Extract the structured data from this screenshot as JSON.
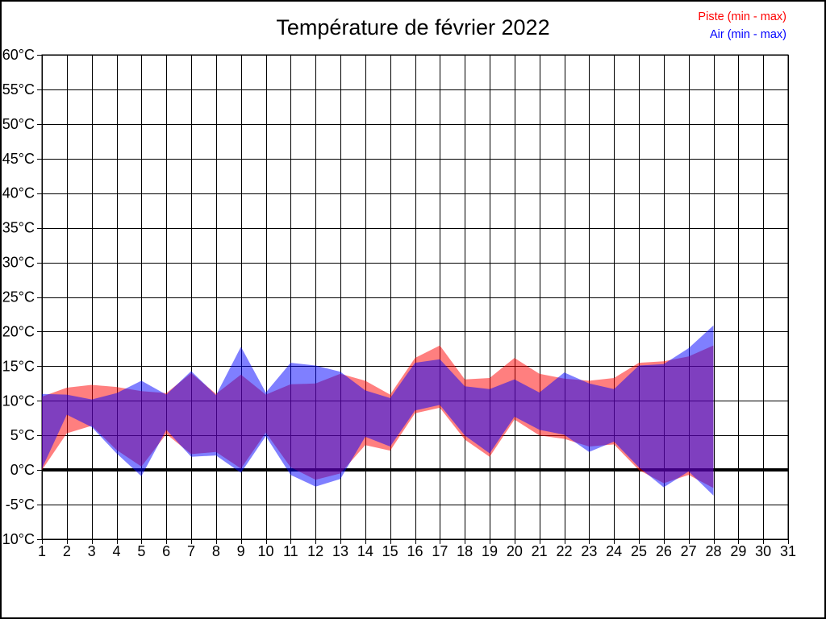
{
  "page": {
    "background": "#ffffff",
    "frame_color": "#000000"
  },
  "title": "Température de février 2022",
  "legend": [
    {
      "label": "Piste (min - max)",
      "color": "#ff0000"
    },
    {
      "label": "Air (min - max)",
      "color": "#0000ff"
    }
  ],
  "chart_data": {
    "type": "area",
    "title": "Température de février 2022",
    "xlabel": "",
    "ylabel": "",
    "grid": true,
    "legend_position": "top-right",
    "xlim": [
      1,
      31
    ],
    "ylim": [
      -10,
      60
    ],
    "y_tick_step": 5,
    "zero_line_value": 0,
    "x_tick_labels": [
      "1",
      "2",
      "3",
      "4",
      "5",
      "6",
      "7",
      "8",
      "9",
      "10",
      "11",
      "12",
      "13",
      "14",
      "15",
      "16",
      "17",
      "18",
      "19",
      "20",
      "21",
      "22",
      "23",
      "24",
      "25",
      "26",
      "27",
      "28",
      "29",
      "30",
      "31"
    ],
    "y_tick_labels": [
      "-10°C",
      "-5°C",
      "0°C",
      "5°C",
      "10°C",
      "15°C",
      "20°C",
      "25°C",
      "30°C",
      "35°C",
      "40°C",
      "45°C",
      "50°C",
      "55°C",
      "60°C"
    ],
    "x": [
      1,
      2,
      3,
      4,
      5,
      6,
      7,
      8,
      9,
      10,
      11,
      12,
      13,
      14,
      15,
      16,
      17,
      18,
      19,
      20,
      21,
      22,
      23,
      24,
      25,
      26,
      27,
      28
    ],
    "series": [
      {
        "name": "Piste (min - max)",
        "fill": "rgba(255,0,0,0.5)",
        "min": [
          0.0,
          5.3,
          6.4,
          2.9,
          0.5,
          5.2,
          2.3,
          2.6,
          0.2,
          5.4,
          0.4,
          -1.4,
          -0.5,
          3.6,
          2.8,
          8.2,
          9.0,
          4.4,
          1.9,
          7.3,
          5.0,
          4.5,
          3.4,
          3.7,
          0.0,
          -1.9,
          -0.7,
          -2.6
        ],
        "max": [
          10.6,
          11.9,
          12.3,
          12.0,
          11.4,
          11.1,
          14.0,
          11.0,
          13.8,
          10.9,
          12.4,
          12.5,
          13.9,
          12.9,
          10.9,
          16.2,
          18.0,
          13.1,
          13.3,
          16.2,
          13.9,
          13.2,
          12.9,
          13.3,
          15.5,
          15.7,
          16.4,
          18.0
        ]
      },
      {
        "name": "Air (min - max)",
        "fill": "rgba(0,0,255,0.5)",
        "min": [
          0.2,
          8.0,
          6.2,
          2.4,
          -0.9,
          5.8,
          1.9,
          2.1,
          -0.4,
          4.9,
          -0.7,
          -2.4,
          -1.3,
          4.8,
          3.4,
          8.6,
          9.4,
          5.0,
          2.4,
          7.7,
          5.8,
          5.1,
          2.6,
          4.1,
          0.4,
          -2.5,
          -0.2,
          -3.7
        ],
        "max": [
          11.0,
          10.9,
          10.2,
          11.1,
          12.9,
          10.9,
          14.3,
          10.8,
          17.8,
          11.2,
          15.5,
          15.1,
          14.2,
          11.5,
          10.4,
          15.5,
          16.0,
          12.1,
          11.7,
          13.1,
          11.2,
          14.1,
          12.5,
          11.7,
          15.1,
          15.3,
          17.6,
          20.9
        ]
      }
    ]
  }
}
